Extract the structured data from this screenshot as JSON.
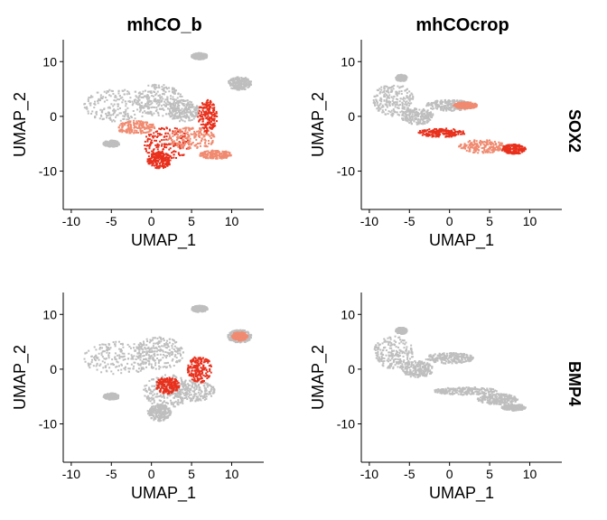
{
  "figure": {
    "columns": [
      "mhCO_b",
      "mhCOcrop"
    ],
    "rows": [
      "SOX2",
      "BMP4"
    ],
    "x_axis_label": "UMAP_1",
    "y_axis_label": "UMAP_2",
    "x_ticks": [
      "-10",
      "-5",
      "0",
      "5",
      "10"
    ],
    "y_ticks": [
      "10",
      "0",
      "-10"
    ]
  },
  "colors": {
    "background_cells": "#bebebe",
    "high_expression": "#e8301c",
    "mid_expression": "#f08a70"
  },
  "chart_data": [
    {
      "type": "scatter",
      "panel": "mhCO_b / SOX2",
      "title": "mhCO_b",
      "facet": "SOX2",
      "xlabel": "UMAP_1",
      "ylabel": "UMAP_2",
      "xlim": [
        -11,
        14
      ],
      "ylim": [
        -17,
        14
      ],
      "gray_clusters": [
        {
          "cx": -4,
          "cy": 2,
          "rx": 4.5,
          "ry": 3
        },
        {
          "cx": 1,
          "cy": 3,
          "rx": 3,
          "ry": 3
        },
        {
          "cx": 4,
          "cy": 1,
          "rx": 2,
          "ry": 2
        },
        {
          "cx": 11,
          "cy": 6,
          "rx": 1.5,
          "ry": 1.2
        },
        {
          "cx": 6,
          "cy": 11,
          "rx": 1,
          "ry": 0.6
        },
        {
          "cx": -5,
          "cy": -5,
          "rx": 1,
          "ry": 0.6
        }
      ],
      "red_clusters": [
        {
          "cx": 2,
          "cy": -5,
          "rx": 3,
          "ry": 3
        },
        {
          "cx": 5,
          "cy": -4,
          "rx": 3,
          "ry": 2
        },
        {
          "cx": 1,
          "cy": -8,
          "rx": 1.5,
          "ry": 1.5
        },
        {
          "cx": -2,
          "cy": -2,
          "rx": 2.5,
          "ry": 1.2
        },
        {
          "cx": 7,
          "cy": 0,
          "rx": 1.2,
          "ry": 3
        },
        {
          "cx": 8,
          "cy": -7,
          "rx": 2,
          "ry": 0.8
        }
      ]
    },
    {
      "type": "scatter",
      "panel": "mhCOcrop / SOX2",
      "title": "mhCOcrop",
      "facet": "SOX2",
      "xlabel": "UMAP_1",
      "ylabel": "UMAP_2",
      "xlim": [
        -11,
        14
      ],
      "ylim": [
        -17,
        14
      ],
      "gray_clusters": [
        {
          "cx": -7,
          "cy": 3,
          "rx": 2.5,
          "ry": 3
        },
        {
          "cx": -4,
          "cy": 0,
          "rx": 2,
          "ry": 1.5
        },
        {
          "cx": 0,
          "cy": 2,
          "rx": 3,
          "ry": 1
        },
        {
          "cx": -6,
          "cy": 7,
          "rx": 0.7,
          "ry": 0.6
        }
      ],
      "red_clusters": [
        {
          "cx": -1,
          "cy": -3,
          "rx": 3,
          "ry": 0.8
        },
        {
          "cx": 4,
          "cy": -5.5,
          "rx": 3,
          "ry": 1.2
        },
        {
          "cx": 8,
          "cy": -6,
          "rx": 1.5,
          "ry": 0.9
        },
        {
          "cx": 2,
          "cy": 2,
          "rx": 1.5,
          "ry": 0.6
        }
      ]
    },
    {
      "type": "scatter",
      "panel": "mhCO_b / BMP4",
      "title": "mhCO_b",
      "facet": "BMP4",
      "xlabel": "UMAP_1",
      "ylabel": "UMAP_2",
      "xlim": [
        -11,
        14
      ],
      "ylim": [
        -17,
        14
      ],
      "gray_clusters": [
        {
          "cx": -4,
          "cy": 2,
          "rx": 4.5,
          "ry": 3
        },
        {
          "cx": 1,
          "cy": 3,
          "rx": 3,
          "ry": 3
        },
        {
          "cx": 2,
          "cy": -4,
          "rx": 3,
          "ry": 3
        },
        {
          "cx": 5,
          "cy": -4,
          "rx": 3,
          "ry": 2
        },
        {
          "cx": 1,
          "cy": -8,
          "rx": 1.5,
          "ry": 1.5
        },
        {
          "cx": 11,
          "cy": 6,
          "rx": 1.5,
          "ry": 1.2
        },
        {
          "cx": 6,
          "cy": 11,
          "rx": 1,
          "ry": 0.6
        },
        {
          "cx": -5,
          "cy": -5,
          "rx": 1,
          "ry": 0.6
        }
      ],
      "red_clusters": [
        {
          "cx": 6,
          "cy": 0,
          "rx": 1.5,
          "ry": 2.5
        },
        {
          "cx": 11,
          "cy": 6,
          "rx": 1,
          "ry": 0.8
        },
        {
          "cx": 2,
          "cy": -3,
          "rx": 1.5,
          "ry": 1.5
        }
      ]
    },
    {
      "type": "scatter",
      "panel": "mhCOcrop / BMP4",
      "title": "mhCOcrop",
      "facet": "BMP4",
      "xlabel": "UMAP_1",
      "ylabel": "UMAP_2",
      "xlim": [
        -11,
        14
      ],
      "ylim": [
        -17,
        14
      ],
      "gray_clusters": [
        {
          "cx": -7,
          "cy": 3,
          "rx": 2.5,
          "ry": 3
        },
        {
          "cx": -4,
          "cy": 0,
          "rx": 2,
          "ry": 1.5
        },
        {
          "cx": 0,
          "cy": 2,
          "rx": 3,
          "ry": 1
        },
        {
          "cx": -6,
          "cy": 7,
          "rx": 0.7,
          "ry": 0.6
        },
        {
          "cx": 2,
          "cy": -4,
          "rx": 4,
          "ry": 0.7
        },
        {
          "cx": 6,
          "cy": -5.5,
          "rx": 2.5,
          "ry": 1
        },
        {
          "cx": 8,
          "cy": -7,
          "rx": 1.5,
          "ry": 0.6
        }
      ],
      "red_clusters": []
    }
  ]
}
